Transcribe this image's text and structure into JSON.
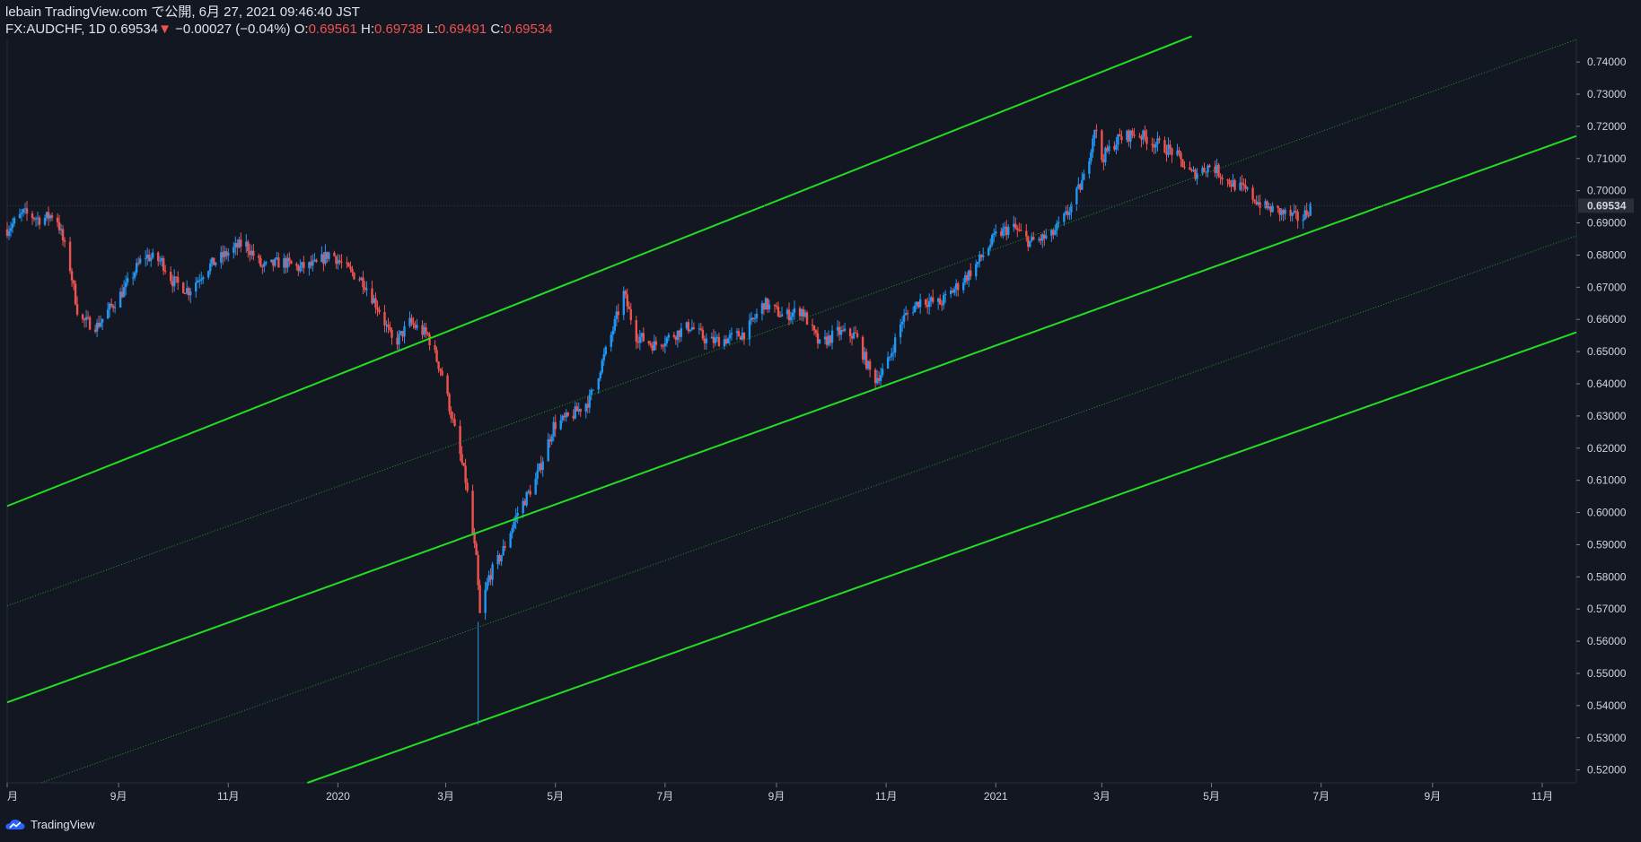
{
  "header": {
    "publish_line": "lebain TradingView.com で公開, 6月 27, 2021 09:46:40 JST",
    "symbol": "FX:AUDCHF, 1D",
    "last": "0.69534",
    "change": "−0.00027 (−0.04%)",
    "o_label": "O:",
    "o": "0.69561",
    "h_label": "H:",
    "h": "0.69738",
    "l_label": "L:",
    "l": "0.69491",
    "c_label": "C:",
    "c": "0.69534"
  },
  "footer": {
    "brand": "TradingView"
  },
  "colors": {
    "background": "#131722",
    "up": "#2196f3",
    "down": "#ef5350",
    "channel": "#22dd22"
  },
  "chart_data": {
    "type": "candlestick",
    "y_ticks": [
      "0.74000",
      "0.73000",
      "0.72000",
      "0.71000",
      "0.70000",
      "0.69000",
      "0.68000",
      "0.67000",
      "0.66000",
      "0.65000",
      "0.64000",
      "0.63000",
      "0.62000",
      "0.61000",
      "0.60000",
      "0.59000",
      "0.58000",
      "0.57000",
      "0.56000",
      "0.55000",
      "0.54000",
      "0.53000",
      "0.52000"
    ],
    "ylim": [
      0.516,
      0.747
    ],
    "last_price": "0.69534",
    "x_ticks": [
      {
        "label": "月",
        "date": "2019-07-01"
      },
      {
        "label": "9月",
        "date": "2019-09-01"
      },
      {
        "label": "11月",
        "date": "2019-11-01"
      },
      {
        "label": "2020",
        "date": "2020-01-01"
      },
      {
        "label": "3月",
        "date": "2020-03-01"
      },
      {
        "label": "5月",
        "date": "2020-05-01"
      },
      {
        "label": "7月",
        "date": "2020-07-01"
      },
      {
        "label": "9月",
        "date": "2020-09-01"
      },
      {
        "label": "11月",
        "date": "2020-11-01"
      },
      {
        "label": "2021",
        "date": "2021-01-01"
      },
      {
        "label": "3月",
        "date": "2021-03-01"
      },
      {
        "label": "5月",
        "date": "2021-05-01"
      },
      {
        "label": "7月",
        "date": "2021-07-01"
      },
      {
        "label": "9月",
        "date": "2021-09-01"
      },
      {
        "label": "11月",
        "date": "2021-11-01"
      }
    ],
    "price_path": [
      [
        "2019-07-01",
        0.688
      ],
      [
        "2019-07-10",
        0.693
      ],
      [
        "2019-07-20",
        0.691
      ],
      [
        "2019-07-28",
        0.693
      ],
      [
        "2019-08-05",
        0.676
      ],
      [
        "2019-08-10",
        0.66
      ],
      [
        "2019-08-20",
        0.658
      ],
      [
        "2019-08-28",
        0.664
      ],
      [
        "2019-09-05",
        0.67
      ],
      [
        "2019-09-15",
        0.68
      ],
      [
        "2019-09-25",
        0.678
      ],
      [
        "2019-10-01",
        0.672
      ],
      [
        "2019-10-10",
        0.669
      ],
      [
        "2019-10-20",
        0.676
      ],
      [
        "2019-10-30",
        0.68
      ],
      [
        "2019-11-10",
        0.684
      ],
      [
        "2019-11-20",
        0.676
      ],
      [
        "2019-12-01",
        0.678
      ],
      [
        "2019-12-10",
        0.676
      ],
      [
        "2019-12-20",
        0.677
      ],
      [
        "2019-12-28",
        0.681
      ],
      [
        "2020-01-05",
        0.676
      ],
      [
        "2020-01-15",
        0.672
      ],
      [
        "2020-01-25",
        0.662
      ],
      [
        "2020-02-01",
        0.652
      ],
      [
        "2020-02-10",
        0.659
      ],
      [
        "2020-02-20",
        0.655
      ],
      [
        "2020-02-28",
        0.643
      ],
      [
        "2020-03-05",
        0.628
      ],
      [
        "2020-03-12",
        0.61
      ],
      [
        "2020-03-18",
        0.585
      ],
      [
        "2020-03-20",
        0.568
      ],
      [
        "2020-03-25",
        0.58
      ],
      [
        "2020-04-01",
        0.587
      ],
      [
        "2020-04-10",
        0.6
      ],
      [
        "2020-04-20",
        0.61
      ],
      [
        "2020-04-30",
        0.627
      ],
      [
        "2020-05-10",
        0.63
      ],
      [
        "2020-05-20",
        0.635
      ],
      [
        "2020-06-01",
        0.655
      ],
      [
        "2020-06-08",
        0.668
      ],
      [
        "2020-06-15",
        0.655
      ],
      [
        "2020-06-25",
        0.652
      ],
      [
        "2020-07-05",
        0.655
      ],
      [
        "2020-07-15",
        0.658
      ],
      [
        "2020-07-25",
        0.653
      ],
      [
        "2020-08-05",
        0.654
      ],
      [
        "2020-08-15",
        0.656
      ],
      [
        "2020-08-25",
        0.665
      ],
      [
        "2020-09-05",
        0.661
      ],
      [
        "2020-09-15",
        0.663
      ],
      [
        "2020-09-25",
        0.652
      ],
      [
        "2020-10-05",
        0.656
      ],
      [
        "2020-10-15",
        0.655
      ],
      [
        "2020-10-25",
        0.641
      ],
      [
        "2020-11-01",
        0.645
      ],
      [
        "2020-11-10",
        0.66
      ],
      [
        "2020-11-20",
        0.666
      ],
      [
        "2020-12-01",
        0.665
      ],
      [
        "2020-12-10",
        0.67
      ],
      [
        "2020-12-20",
        0.676
      ],
      [
        "2021-01-01",
        0.686
      ],
      [
        "2021-01-10",
        0.689
      ],
      [
        "2021-01-20",
        0.684
      ],
      [
        "2021-02-01",
        0.686
      ],
      [
        "2021-02-10",
        0.693
      ],
      [
        "2021-02-20",
        0.705
      ],
      [
        "2021-02-25",
        0.72
      ],
      [
        "2021-03-01",
        0.71
      ],
      [
        "2021-03-10",
        0.716
      ],
      [
        "2021-03-20",
        0.718
      ],
      [
        "2021-03-30",
        0.715
      ],
      [
        "2021-04-10",
        0.712
      ],
      [
        "2021-04-20",
        0.705
      ],
      [
        "2021-05-01",
        0.708
      ],
      [
        "2021-05-10",
        0.703
      ],
      [
        "2021-05-20",
        0.7
      ],
      [
        "2021-05-30",
        0.695
      ],
      [
        "2021-06-10",
        0.693
      ],
      [
        "2021-06-20",
        0.691
      ],
      [
        "2021-06-25",
        0.695
      ]
    ],
    "channel_lines": [
      {
        "style": "solid",
        "points": [
          [
            "2019-07-01",
            0.602
          ],
          [
            "2021-04-20",
            0.748
          ]
        ]
      },
      {
        "style": "dotted",
        "points": [
          [
            "2019-07-01",
            0.571
          ],
          [
            "2021-11-20",
            0.747
          ]
        ]
      },
      {
        "style": "solid",
        "points": [
          [
            "2019-07-01",
            0.541
          ],
          [
            "2021-11-20",
            0.717
          ]
        ]
      },
      {
        "style": "dotted",
        "points": [
          [
            "2019-07-20",
            0.516
          ],
          [
            "2021-11-20",
            0.686
          ]
        ]
      },
      {
        "style": "solid",
        "points": [
          [
            "2019-12-15",
            0.516
          ],
          [
            "2021-11-20",
            0.656
          ]
        ]
      }
    ]
  }
}
